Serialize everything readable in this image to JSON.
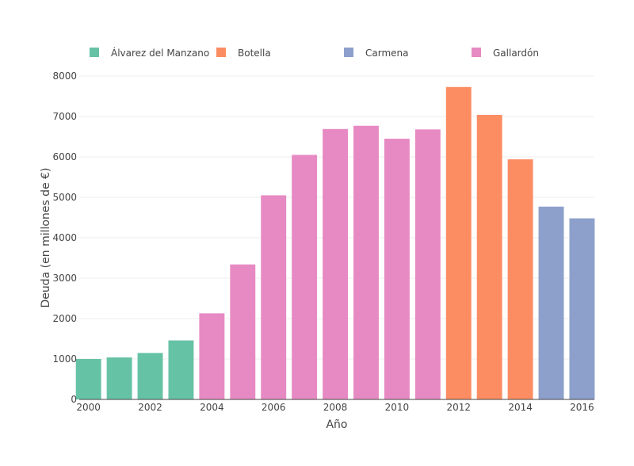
{
  "chart_data": {
    "type": "bar",
    "xlabel": "Año",
    "ylabel": "Deuda (en millones de €)",
    "ylim": [
      0,
      8000
    ],
    "xlim": [
      1999.7,
      2016.4
    ],
    "yticks": [
      0,
      1000,
      2000,
      3000,
      4000,
      5000,
      6000,
      7000,
      8000
    ],
    "xticks": [
      2000,
      2002,
      2004,
      2006,
      2008,
      2010,
      2012,
      2014,
      2016
    ],
    "grid": true,
    "legend_position": "top",
    "series": [
      {
        "name": "Álvarez del Manzano",
        "color": "#66c2a5",
        "x": [
          2000,
          2001,
          2002,
          2003
        ],
        "values": [
          1000,
          1040,
          1150,
          1460
        ]
      },
      {
        "name": "Botella",
        "color": "#fc8d62",
        "x": [
          2012,
          2013,
          2014
        ],
        "values": [
          7730,
          7040,
          5940
        ]
      },
      {
        "name": "Carmena",
        "color": "#8da0cb",
        "x": [
          2015,
          2016
        ],
        "values": [
          4770,
          4480
        ]
      },
      {
        "name": "Gallardón",
        "color": "#e78ac3",
        "x": [
          2004,
          2005,
          2006,
          2007,
          2008,
          2009,
          2010,
          2011
        ],
        "values": [
          2130,
          3340,
          5050,
          6050,
          6690,
          6770,
          6450,
          6680
        ]
      }
    ]
  }
}
